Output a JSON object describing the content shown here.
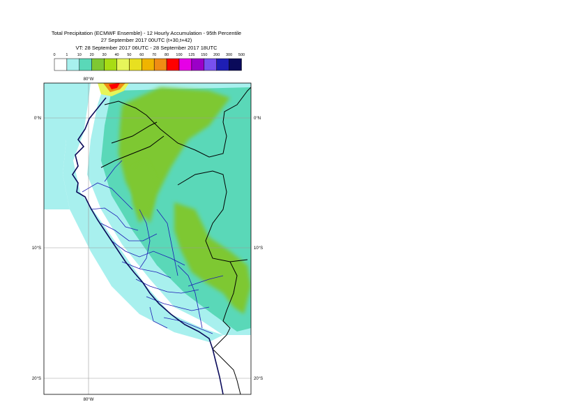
{
  "title": {
    "line1": "Total Precipitation (ECMWF Ensemble) - 12 Hourly Accumulation - 95th Percentile",
    "line2": "27 September 2017 00UTC (t+30,t+42)",
    "line3": "VT: 28 September 2017 06UTC - 28 September 2017 18UTC"
  },
  "legend": {
    "thresholds": [
      "0",
      "1",
      "10",
      "20",
      "30",
      "40",
      "50",
      "60",
      "70",
      "80",
      "100",
      "125",
      "150",
      "200",
      "300",
      "500"
    ],
    "colors": [
      "#ffffff",
      "#a8f0ee",
      "#5ad8b8",
      "#7ec832",
      "#a8dc14",
      "#e6f55a",
      "#e8e020",
      "#f0b400",
      "#f08c14",
      "#ff0000",
      "#e600e6",
      "#9b00c8",
      "#7850f0",
      "#1e1eb4",
      "#0a0a5a"
    ]
  },
  "map": {
    "lon_labels": [
      "80°W",
      "80°W"
    ],
    "lat_labels": {
      "left": [
        "0°N",
        "10°S",
        "20°S"
      ],
      "right": [
        "0°N",
        "10°S",
        "20°S"
      ]
    },
    "field_colors": {
      "ocean_low": "#a8f0ee",
      "moderate": "#5ad8b8",
      "heavy": "#7ec832",
      "peak_yellow": "#e6f55a",
      "peak_orange": "#f08c14",
      "peak_red": "#ff0000",
      "country_border": "#000000",
      "region_border": "#1c1cb4"
    }
  }
}
